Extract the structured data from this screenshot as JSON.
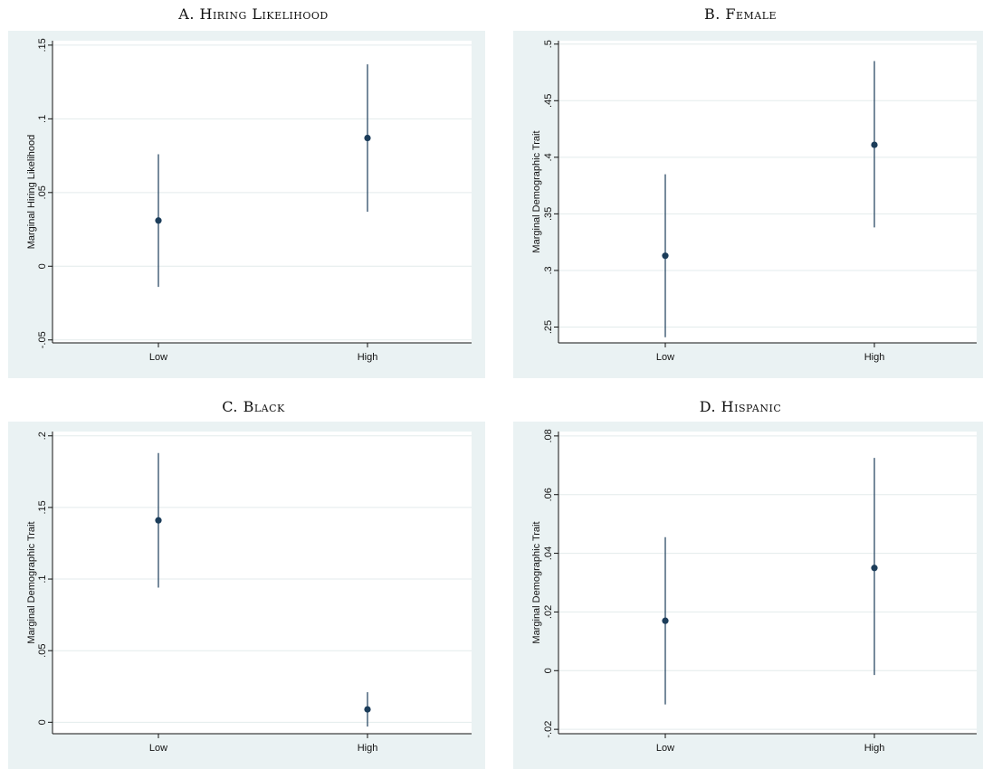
{
  "chart_data": [
    {
      "type": "scatter",
      "title": "A. Hiring Likelihood",
      "ylabel": "Marginal Hiring Likelihood",
      "xlabel": "",
      "categories": [
        "Low",
        "High"
      ],
      "values": [
        0.031,
        0.087
      ],
      "ci_low": [
        -0.014,
        0.037
      ],
      "ci_high": [
        0.076,
        0.137
      ],
      "ylim": [
        -0.052,
        0.153
      ],
      "yticks": [
        -0.05,
        0,
        0.05,
        0.1,
        0.15
      ],
      "ytick_labels": [
        "-.05",
        "0",
        ".05",
        ".1",
        ".15"
      ],
      "grid": true
    },
    {
      "type": "scatter",
      "title": "B. Female",
      "ylabel": "Marginal Demographic Trait",
      "xlabel": "",
      "categories": [
        "Low",
        "High"
      ],
      "values": [
        0.313,
        0.411
      ],
      "ci_low": [
        0.241,
        0.338
      ],
      "ci_high": [
        0.385,
        0.485
      ],
      "ylim": [
        0.236,
        0.503
      ],
      "yticks": [
        0.25,
        0.3,
        0.35,
        0.4,
        0.45,
        0.5
      ],
      "ytick_labels": [
        ".25",
        ".3",
        ".35",
        ".4",
        ".45",
        ".5"
      ],
      "grid": true
    },
    {
      "type": "scatter",
      "title": "C. Black",
      "ylabel": "Marginal Demographic Trait",
      "xlabel": "",
      "categories": [
        "Low",
        "High"
      ],
      "values": [
        0.141,
        0.009
      ],
      "ci_low": [
        0.094,
        -0.003
      ],
      "ci_high": [
        0.188,
        0.021
      ],
      "ylim": [
        -0.008,
        0.203
      ],
      "yticks": [
        0,
        0.05,
        0.1,
        0.15,
        0.2
      ],
      "ytick_labels": [
        "0",
        ".05",
        ".1",
        ".15",
        ".2"
      ],
      "grid": true
    },
    {
      "type": "scatter",
      "title": "D. Hispanic",
      "ylabel": "Marginal Demographic Trait",
      "xlabel": "",
      "categories": [
        "Low",
        "High"
      ],
      "values": [
        0.017,
        0.035
      ],
      "ci_low": [
        -0.0115,
        -0.0015
      ],
      "ci_high": [
        0.0455,
        0.0725
      ],
      "ylim": [
        -0.0215,
        0.0815
      ],
      "yticks": [
        -0.02,
        0,
        0.02,
        0.04,
        0.06,
        0.08
      ],
      "ytick_labels": [
        "-.02",
        "0",
        ".02",
        ".04",
        ".06",
        ".08"
      ],
      "grid": true
    }
  ],
  "colors": {
    "marker": "#1c3d5a",
    "panel_bg": "#eaf2f3",
    "plot_bg": "#ffffff",
    "grid": "#e3ebec"
  }
}
